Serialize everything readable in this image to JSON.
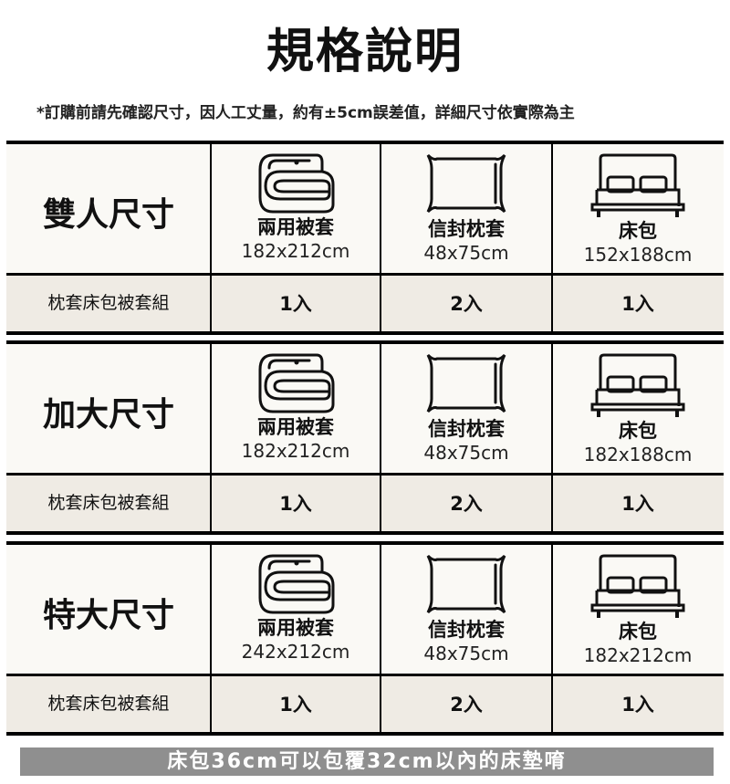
{
  "title": "規格說明",
  "note": "*訂購前請先確認尺寸，因人工丈量，約有±5cm誤差值，詳細尺寸依實際為主",
  "sections": [
    {
      "size": "雙人尺寸",
      "items": [
        {
          "icon": "duvet-icon",
          "name": "兩用被套",
          "dim": "182x212cm"
        },
        {
          "icon": "pillow-icon",
          "name": "信封枕套",
          "dim": "48x75cm"
        },
        {
          "icon": "bed-icon",
          "name": "床包",
          "dim": "152x188cm"
        }
      ],
      "set_label": "枕套床包被套組",
      "qty": [
        "1入",
        "2入",
        "1入"
      ]
    },
    {
      "size": "加大尺寸",
      "items": [
        {
          "icon": "duvet-icon",
          "name": "兩用被套",
          "dim": "182x212cm"
        },
        {
          "icon": "pillow-icon",
          "name": "信封枕套",
          "dim": "48x75cm"
        },
        {
          "icon": "bed-icon",
          "name": "床包",
          "dim": "182x188cm"
        }
      ],
      "set_label": "枕套床包被套組",
      "qty": [
        "1入",
        "2入",
        "1入"
      ]
    },
    {
      "size": "特大尺寸",
      "items": [
        {
          "icon": "duvet-icon",
          "name": "兩用被套",
          "dim": "242x212cm"
        },
        {
          "icon": "pillow-icon",
          "name": "信封枕套",
          "dim": "48x75cm"
        },
        {
          "icon": "bed-icon",
          "name": "床包",
          "dim": "182x212cm"
        }
      ],
      "set_label": "枕套床包被套組",
      "qty": [
        "1入",
        "2入",
        "1入"
      ]
    }
  ],
  "banner": "床包36cm可以包覆32cm以內的床墊唷"
}
